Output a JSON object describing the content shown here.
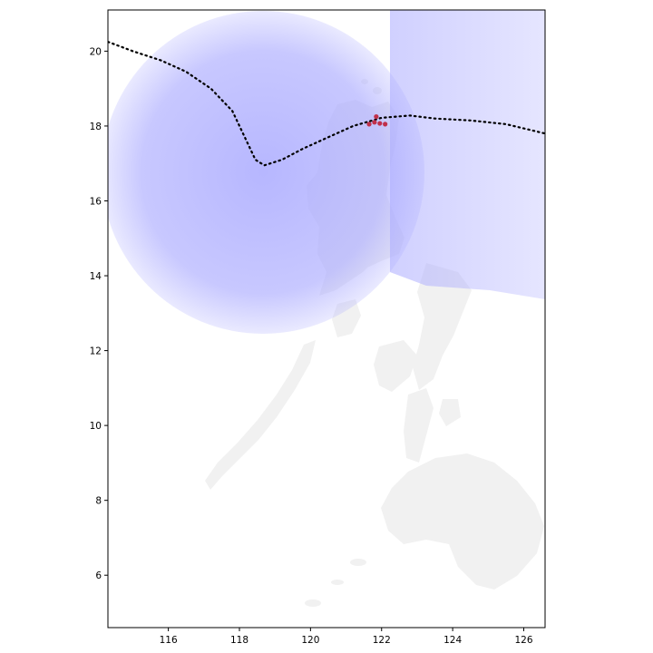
{
  "map": {
    "x_axis": {
      "min": 114.3,
      "max": 126.6,
      "ticks": [
        {
          "value": 116,
          "label": "116"
        },
        {
          "value": 118,
          "label": "118"
        },
        {
          "value": 120,
          "label": "120"
        },
        {
          "value": 122,
          "label": "122"
        },
        {
          "value": 124,
          "label": "124"
        },
        {
          "value": 126,
          "label": "126"
        }
      ]
    },
    "y_axis": {
      "min": 4.6,
      "max": 21.1,
      "ticks": [
        {
          "value": 6,
          "label": "6"
        },
        {
          "value": 8,
          "label": "8"
        },
        {
          "value": 10,
          "label": "10"
        },
        {
          "value": 12,
          "label": "12"
        },
        {
          "value": 14,
          "label": "14"
        },
        {
          "value": 16,
          "label": "16"
        },
        {
          "value": 18,
          "label": "18"
        },
        {
          "value": 20,
          "label": "20"
        }
      ]
    },
    "colors": {
      "background": "#ffffff",
      "land": "#f1f1f1",
      "wind_field": "#aaaaff",
      "track": "#000000",
      "landfall_marker": "#c0304a",
      "frame": "#000000"
    },
    "storm_track": [
      {
        "lon": 114.3,
        "lat": 20.25
      },
      {
        "lon": 115.0,
        "lat": 20.0
      },
      {
        "lon": 115.8,
        "lat": 19.75
      },
      {
        "lon": 116.5,
        "lat": 19.45
      },
      {
        "lon": 117.2,
        "lat": 19.0
      },
      {
        "lon": 117.8,
        "lat": 18.4
      },
      {
        "lon": 118.15,
        "lat": 17.7
      },
      {
        "lon": 118.45,
        "lat": 17.1
      },
      {
        "lon": 118.7,
        "lat": 16.95
      },
      {
        "lon": 119.2,
        "lat": 17.1
      },
      {
        "lon": 119.8,
        "lat": 17.4
      },
      {
        "lon": 120.5,
        "lat": 17.7
      },
      {
        "lon": 121.2,
        "lat": 18.0
      },
      {
        "lon": 122.0,
        "lat": 18.22
      },
      {
        "lon": 122.8,
        "lat": 18.28
      },
      {
        "lon": 123.5,
        "lat": 18.2
      },
      {
        "lon": 124.5,
        "lat": 18.15
      },
      {
        "lon": 125.5,
        "lat": 18.05
      },
      {
        "lon": 126.6,
        "lat": 17.8
      }
    ],
    "landfall_points": [
      {
        "lon": 121.65,
        "lat": 18.05
      },
      {
        "lon": 121.8,
        "lat": 18.1
      },
      {
        "lon": 121.95,
        "lat": 18.07
      },
      {
        "lon": 122.1,
        "lat": 18.05
      },
      {
        "lon": 121.85,
        "lat": 18.25
      }
    ]
  }
}
